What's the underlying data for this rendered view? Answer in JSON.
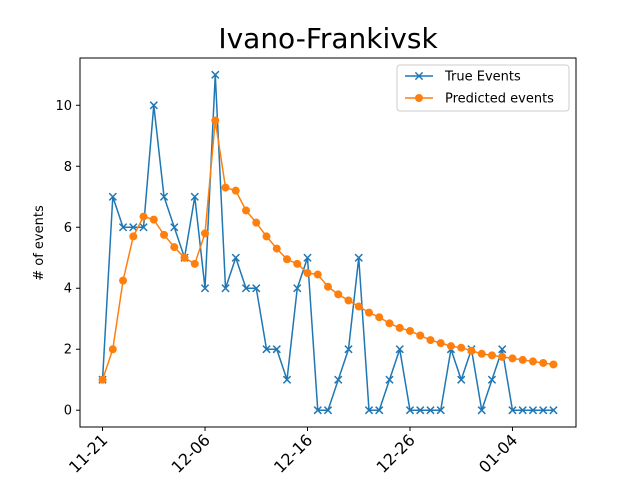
{
  "chart_data": {
    "type": "line",
    "title": "Ivano-Frankivsk",
    "xlabel": "",
    "ylabel": "# of events",
    "x_tick_labels": [
      "11-21",
      "12-06",
      "12-16",
      "12-26",
      "01-04"
    ],
    "x_tick_indices": [
      0,
      10,
      20,
      30,
      40
    ],
    "y_ticks": [
      0,
      2,
      4,
      6,
      8,
      10
    ],
    "xlim": [
      -2.2,
      46.2
    ],
    "ylim": [
      -0.55,
      11.55
    ],
    "grid": false,
    "legend_position": "upper right",
    "series": [
      {
        "name": "True Events",
        "color": "#1f77b4",
        "marker": "x",
        "values": [
          1,
          7,
          6,
          6,
          6,
          10,
          7,
          6,
          5,
          7,
          4,
          11,
          4,
          5,
          4,
          4,
          2,
          2,
          1,
          4,
          5,
          0,
          0,
          1,
          2,
          5,
          0,
          0,
          1,
          2,
          0,
          0,
          0,
          0,
          2,
          1,
          2,
          0,
          1,
          2,
          0,
          0,
          0,
          0,
          0
        ]
      },
      {
        "name": "Predicted events",
        "color": "#ff7f0e",
        "marker": "o",
        "values": [
          1.0,
          2.0,
          4.25,
          5.7,
          6.35,
          6.25,
          5.75,
          5.35,
          5.0,
          4.8,
          5.8,
          9.5,
          7.3,
          7.2,
          6.55,
          6.15,
          5.7,
          5.3,
          4.95,
          4.8,
          4.5,
          4.45,
          4.05,
          3.8,
          3.6,
          3.4,
          3.2,
          3.05,
          2.85,
          2.7,
          2.6,
          2.45,
          2.3,
          2.2,
          2.1,
          2.05,
          1.95,
          1.85,
          1.8,
          1.75,
          1.7,
          1.65,
          1.6,
          1.55,
          1.5
        ]
      }
    ]
  }
}
